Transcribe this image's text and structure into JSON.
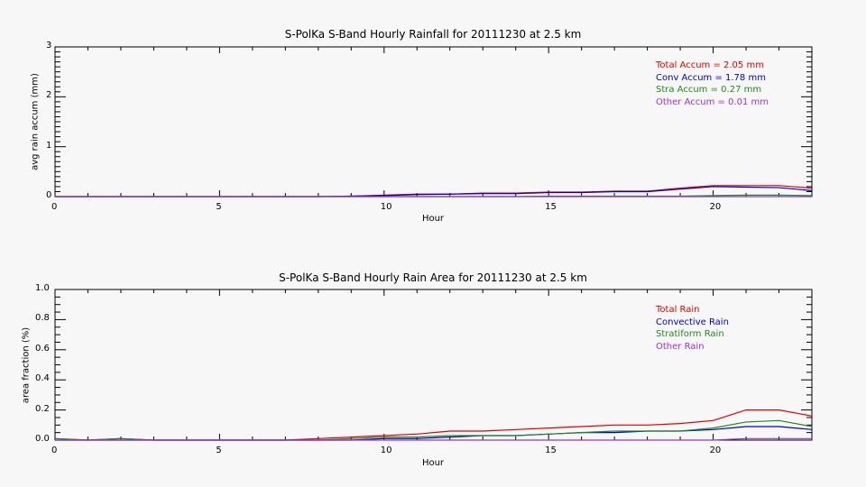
{
  "chart_data": [
    {
      "type": "line",
      "title": "S-PolKa S-Band Hourly Rainfall for 20111230 at 2.5 km",
      "xlabel": "Hour",
      "ylabel": "avg rain accum (mm)",
      "xlim": [
        0,
        23
      ],
      "ylim": [
        0,
        3
      ],
      "xticks": [
        "0",
        "5",
        "10",
        "15",
        "20"
      ],
      "yticks": [
        "0",
        "1",
        "2",
        "3"
      ],
      "legend_position": "upper right",
      "x": [
        0,
        1,
        2,
        3,
        4,
        5,
        6,
        7,
        8,
        9,
        10,
        11,
        12,
        13,
        14,
        15,
        16,
        17,
        18,
        19,
        20,
        21,
        22,
        23
      ],
      "series": [
        {
          "name": "Total Accum = 2.05 mm",
          "color": "#dd0000",
          "values": [
            0,
            0,
            0,
            0,
            0,
            0,
            0,
            0,
            0,
            0.01,
            0.03,
            0.05,
            0.05,
            0.07,
            0.07,
            0.09,
            0.09,
            0.11,
            0.11,
            0.17,
            0.22,
            0.22,
            0.22,
            0.17
          ]
        },
        {
          "name": "Conv Accum = 1.78 mm",
          "color": "#0000cc",
          "values": [
            0,
            0,
            0,
            0,
            0,
            0,
            0,
            0,
            0,
            0.01,
            0.02,
            0.04,
            0.05,
            0.06,
            0.06,
            0.08,
            0.08,
            0.1,
            0.1,
            0.15,
            0.2,
            0.19,
            0.18,
            0.12
          ]
        },
        {
          "name": "Stra Accum = 0.27 mm",
          "color": "#228822",
          "values": [
            0,
            0,
            0,
            0,
            0,
            0,
            0,
            0,
            0,
            0,
            0,
            0,
            0,
            0,
            0,
            0.01,
            0.01,
            0.01,
            0.01,
            0.01,
            0.02,
            0.03,
            0.03,
            0.02
          ]
        },
        {
          "name": "Other Accum = 0.01 mm",
          "color": "#9933cc",
          "values": [
            0,
            0,
            0,
            0,
            0,
            0,
            0,
            0,
            0,
            0,
            0,
            0,
            0,
            0,
            0,
            0,
            0,
            0,
            0,
            0,
            0,
            0,
            0,
            0
          ]
        }
      ]
    },
    {
      "type": "line",
      "title": "S-PolKa S-Band Hourly Rain Area for 20111230 at 2.5 km",
      "xlabel": "Hour",
      "ylabel": "area fraction (%)",
      "xlim": [
        0,
        23
      ],
      "ylim": [
        0,
        1.0
      ],
      "xticks": [
        "0",
        "5",
        "10",
        "15",
        "20"
      ],
      "yticks": [
        "0.0",
        "0.2",
        "0.4",
        "0.6",
        "0.8",
        "1.0"
      ],
      "legend_position": "upper right",
      "x": [
        0,
        1,
        2,
        3,
        4,
        5,
        6,
        7,
        8,
        9,
        10,
        11,
        12,
        13,
        14,
        15,
        16,
        17,
        18,
        19,
        20,
        21,
        22,
        23
      ],
      "series": [
        {
          "name": "Total Rain",
          "color": "#dd0000",
          "values": [
            0.01,
            0,
            0.01,
            0,
            0,
            0,
            0,
            0,
            0.01,
            0.02,
            0.03,
            0.04,
            0.06,
            0.06,
            0.07,
            0.08,
            0.09,
            0.1,
            0.1,
            0.11,
            0.13,
            0.2,
            0.2,
            0.16
          ]
        },
        {
          "name": "Convective Rain",
          "color": "#0000cc",
          "values": [
            0,
            0,
            0,
            0,
            0,
            0,
            0,
            0,
            0,
            0,
            0.01,
            0.01,
            0.02,
            0.03,
            0.03,
            0.04,
            0.05,
            0.05,
            0.06,
            0.06,
            0.07,
            0.09,
            0.09,
            0.07
          ]
        },
        {
          "name": "Stratiform Rain",
          "color": "#228822",
          "values": [
            0.01,
            0,
            0.01,
            0,
            0,
            0,
            0,
            0,
            0,
            0.01,
            0.02,
            0.02,
            0.03,
            0.03,
            0.03,
            0.04,
            0.05,
            0.06,
            0.06,
            0.06,
            0.08,
            0.12,
            0.13,
            0.09
          ]
        },
        {
          "name": "Other Rain",
          "color": "#9933cc",
          "values": [
            0,
            0,
            0,
            0,
            0,
            0,
            0,
            0,
            0,
            0,
            0,
            0,
            0,
            0,
            0,
            0,
            0,
            0,
            0,
            0,
            0,
            0.01,
            0.01,
            0.01
          ]
        }
      ]
    }
  ]
}
